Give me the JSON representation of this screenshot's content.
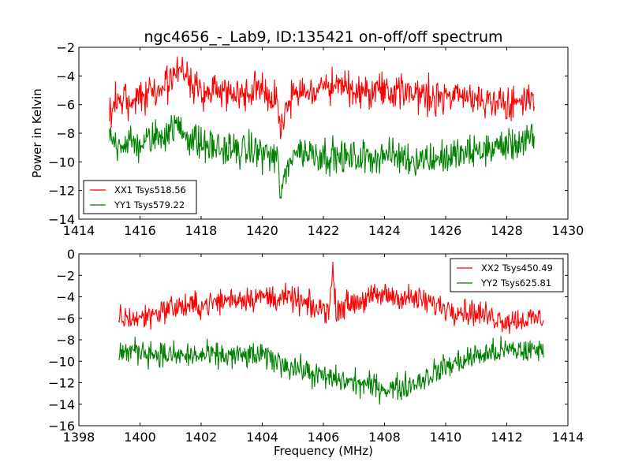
{
  "figure": {
    "title": "ngc4656_-_Lab9, ID:135421 on-off/off spectrum",
    "colors": {
      "xx": "#ff0000",
      "yy": "#008000"
    }
  },
  "chart_data": [
    {
      "type": "line",
      "title": "ngc4656_-_Lab9, ID:135421 on-off/off spectrum",
      "xlabel": "",
      "ylabel": "Power in Kelvin",
      "xlim": [
        1414,
        1430
      ],
      "ylim": [
        -14,
        -2
      ],
      "xticks": [
        "1414",
        "1416",
        "1418",
        "1420",
        "1422",
        "1424",
        "1426",
        "1428",
        "1430"
      ],
      "yticks": [
        "−14",
        "−12",
        "−10",
        "−8",
        "−6",
        "−4",
        "−2"
      ],
      "legend_position": "lower-left",
      "series": [
        {
          "name": "XX1 Tsys518.56",
          "color": "#ff0000",
          "x": [
            1415.0,
            1416.0,
            1416.8,
            1417.1,
            1417.3,
            1417.6,
            1418.0,
            1419.0,
            1420.0,
            1420.5,
            1420.6,
            1421.0,
            1422.0,
            1423.0,
            1424.0,
            1425.0,
            1426.0,
            1427.0,
            1428.0,
            1428.9
          ],
          "y": [
            -6.0,
            -5.5,
            -4.8,
            -4.0,
            -3.3,
            -4.2,
            -5.0,
            -5.2,
            -5.0,
            -5.5,
            -8.0,
            -5.2,
            -4.8,
            -5.0,
            -5.0,
            -5.2,
            -5.5,
            -5.7,
            -5.8,
            -5.8
          ]
        },
        {
          "name": "YY1 Tsys579.22",
          "color": "#008000",
          "x": [
            1415.0,
            1416.0,
            1416.8,
            1417.2,
            1417.6,
            1418.0,
            1419.0,
            1420.0,
            1420.5,
            1420.6,
            1421.0,
            1422.0,
            1423.0,
            1424.0,
            1425.0,
            1426.0,
            1427.0,
            1428.0,
            1428.9
          ],
          "y": [
            -8.5,
            -8.8,
            -8.0,
            -7.5,
            -8.2,
            -8.8,
            -9.2,
            -9.3,
            -9.8,
            -12.3,
            -9.2,
            -9.5,
            -9.8,
            -9.5,
            -9.8,
            -9.7,
            -9.3,
            -8.8,
            -8.5
          ]
        }
      ]
    },
    {
      "type": "line",
      "title": "",
      "xlabel": "Frequency (MHz)",
      "ylabel": "",
      "xlim": [
        1398,
        1414
      ],
      "ylim": [
        -16,
        0
      ],
      "xticks": [
        "1398",
        "1400",
        "1402",
        "1404",
        "1406",
        "1408",
        "1410",
        "1412",
        "1414"
      ],
      "yticks": [
        "−16",
        "−14",
        "−12",
        "−10",
        "−8",
        "−6",
        "−4",
        "−2",
        "0"
      ],
      "legend_position": "upper-right",
      "series": [
        {
          "name": "XX2 Tsys450.49",
          "color": "#ff0000",
          "x": [
            1399.3,
            1400.0,
            1401.0,
            1402.0,
            1403.0,
            1404.0,
            1405.0,
            1405.8,
            1406.2,
            1406.3,
            1406.4,
            1407.0,
            1408.0,
            1409.0,
            1410.0,
            1411.0,
            1412.0,
            1413.2
          ],
          "y": [
            -6.0,
            -6.0,
            -5.0,
            -4.8,
            -4.2,
            -4.0,
            -4.2,
            -5.2,
            -5.0,
            -1.5,
            -5.0,
            -4.5,
            -3.8,
            -4.2,
            -5.0,
            -5.5,
            -6.2,
            -6.0
          ]
        },
        {
          "name": "YY2 Tsys625.81",
          "color": "#008000",
          "x": [
            1399.3,
            1400.0,
            1401.0,
            1402.0,
            1403.0,
            1404.0,
            1405.0,
            1406.0,
            1407.0,
            1408.0,
            1408.5,
            1409.0,
            1410.0,
            1411.0,
            1412.0,
            1413.2
          ],
          "y": [
            -9.2,
            -9.0,
            -9.5,
            -9.5,
            -9.5,
            -9.5,
            -10.5,
            -11.5,
            -12.0,
            -12.5,
            -12.5,
            -12.0,
            -10.5,
            -9.5,
            -9.0,
            -9.0
          ]
        }
      ]
    }
  ]
}
